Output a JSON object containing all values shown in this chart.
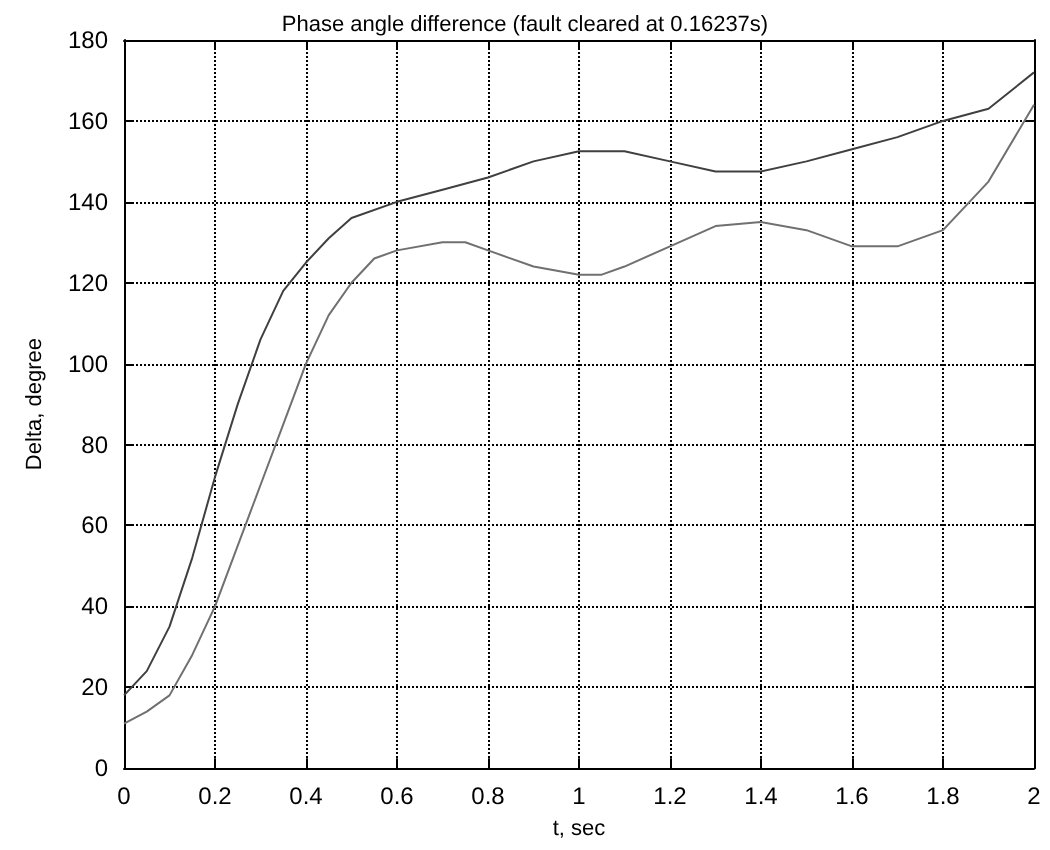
{
  "chart_data": {
    "type": "line",
    "title": "Phase angle difference (fault cleared at 0.16237s)",
    "xlabel": "t, sec",
    "ylabel": "Delta, degree",
    "xlim": [
      0,
      2
    ],
    "xticks": [
      0,
      0.2,
      0.4,
      0.6,
      0.8,
      1,
      1.2,
      1.4,
      1.6,
      1.8,
      2
    ],
    "ylim": [
      0,
      180
    ],
    "yticks": [
      0,
      20,
      40,
      60,
      80,
      100,
      120,
      140,
      160,
      180
    ],
    "grid": true,
    "marker": "none",
    "line_style": "solid",
    "series": [
      {
        "color": "#404040",
        "x": [
          0,
          0.05,
          0.1,
          0.15,
          0.2,
          0.25,
          0.3,
          0.35,
          0.4,
          0.45,
          0.5,
          0.6,
          0.7,
          0.8,
          0.9,
          1.0,
          1.1,
          1.2,
          1.3,
          1.4,
          1.5,
          1.6,
          1.7,
          1.8,
          1.9,
          2.0
        ],
        "values": [
          18,
          24,
          35,
          52,
          72,
          90,
          106,
          118,
          125,
          131,
          136,
          140,
          143,
          146,
          150,
          152.5,
          152.5,
          150,
          147.5,
          147.5,
          150,
          153,
          156,
          160,
          163,
          172
        ]
      },
      {
        "color": "#707070",
        "x": [
          0,
          0.05,
          0.1,
          0.15,
          0.2,
          0.25,
          0.3,
          0.35,
          0.4,
          0.45,
          0.5,
          0.55,
          0.6,
          0.7,
          0.75,
          0.8,
          0.9,
          1.0,
          1.05,
          1.1,
          1.2,
          1.3,
          1.4,
          1.5,
          1.6,
          1.7,
          1.8,
          1.9,
          2.0
        ],
        "values": [
          11,
          14,
          18,
          28,
          40,
          55,
          70,
          85,
          100,
          112,
          120,
          126,
          128,
          130,
          130,
          128,
          124,
          122,
          122,
          124,
          129,
          134,
          135,
          133,
          129,
          129,
          133,
          145,
          164
        ]
      }
    ]
  }
}
